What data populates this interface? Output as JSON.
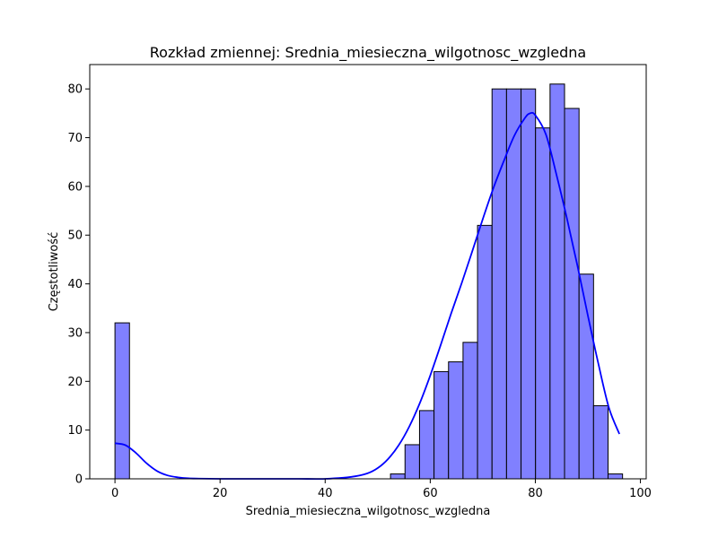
{
  "chart_data": {
    "type": "bar",
    "title": "Rozkład zmiennej: Srednia_miesieczna_wilgotnosc_wzgledna",
    "xlabel": "Srednia_miesieczna_wilgotnosc_wzgledna",
    "ylabel": "Częstotliwość",
    "xlim": [
      -4.8,
      101.1
    ],
    "ylim": [
      0,
      85
    ],
    "xticks": [
      0,
      20,
      40,
      60,
      80,
      100
    ],
    "yticks": [
      0,
      10,
      20,
      30,
      40,
      50,
      60,
      70,
      80
    ],
    "grid": false,
    "bin_width": 2.76,
    "bins": [
      {
        "x0": 0.0,
        "x1": 2.76,
        "count": 32
      },
      {
        "x0": 52.44,
        "x1": 55.2,
        "count": 1
      },
      {
        "x0": 55.2,
        "x1": 57.96,
        "count": 7
      },
      {
        "x0": 57.96,
        "x1": 60.72,
        "count": 14
      },
      {
        "x0": 60.72,
        "x1": 63.48,
        "count": 22
      },
      {
        "x0": 63.48,
        "x1": 66.24,
        "count": 24
      },
      {
        "x0": 66.24,
        "x1": 69.0,
        "count": 28
      },
      {
        "x0": 69.0,
        "x1": 71.76,
        "count": 52
      },
      {
        "x0": 71.76,
        "x1": 74.52,
        "count": 80
      },
      {
        "x0": 74.52,
        "x1": 77.28,
        "count": 80
      },
      {
        "x0": 77.28,
        "x1": 80.04,
        "count": 80
      },
      {
        "x0": 80.04,
        "x1": 82.8,
        "count": 72
      },
      {
        "x0": 82.8,
        "x1": 85.56,
        "count": 81
      },
      {
        "x0": 85.56,
        "x1": 88.32,
        "count": 76
      },
      {
        "x0": 88.32,
        "x1": 91.08,
        "count": 42
      },
      {
        "x0": 91.08,
        "x1": 93.84,
        "count": 15
      },
      {
        "x0": 93.84,
        "x1": 96.6,
        "count": 1
      }
    ],
    "kde": {
      "x": [
        0,
        2,
        4,
        6,
        8,
        10,
        12,
        14,
        16,
        20,
        25,
        30,
        35,
        40,
        45,
        48,
        50,
        52,
        54,
        56,
        58,
        60,
        62,
        64,
        66,
        68,
        70,
        72,
        74,
        76,
        78,
        79,
        80,
        82,
        84,
        86,
        88,
        90,
        92,
        94,
        96
      ],
      "y": [
        7.3,
        6.9,
        5.3,
        3.2,
        1.6,
        0.7,
        0.3,
        0.1,
        0.05,
        0.0,
        0.0,
        0.0,
        0.0,
        0.0,
        0.4,
        1.1,
        2.2,
        4.1,
        6.9,
        10.7,
        15.5,
        21.2,
        27.5,
        34.0,
        40.2,
        46.7,
        53.3,
        59.6,
        65.2,
        70.4,
        74.0,
        75.0,
        74.6,
        70.7,
        62.5,
        53.5,
        43.8,
        33.5,
        23.6,
        14.6,
        9.2
      ],
      "color": "#0000ff"
    },
    "bar_fill": "#8080ff",
    "bar_edge": "#000000"
  }
}
